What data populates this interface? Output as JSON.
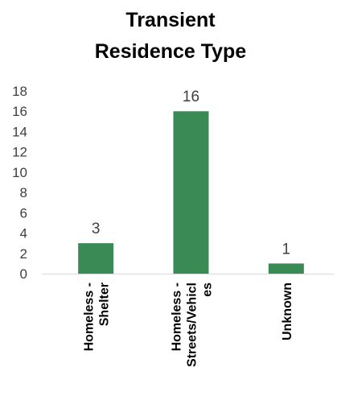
{
  "chart_data": {
    "type": "bar",
    "title_lines": [
      "Transient",
      "Residence Type"
    ],
    "categories": [
      [
        "Homeless -",
        "Shelter"
      ],
      [
        "Homeless -",
        "Streets/Vehicl",
        "es"
      ],
      [
        "Unknown"
      ]
    ],
    "values": [
      3,
      16,
      1
    ],
    "data_labels": [
      "3",
      "16",
      "1"
    ],
    "y_ticks": [
      "0",
      "2",
      "4",
      "6",
      "8",
      "10",
      "12",
      "14",
      "16",
      "18"
    ],
    "ylim": [
      0,
      18
    ],
    "grid": false,
    "legend": "none",
    "bar_color": "#3a8a56"
  }
}
